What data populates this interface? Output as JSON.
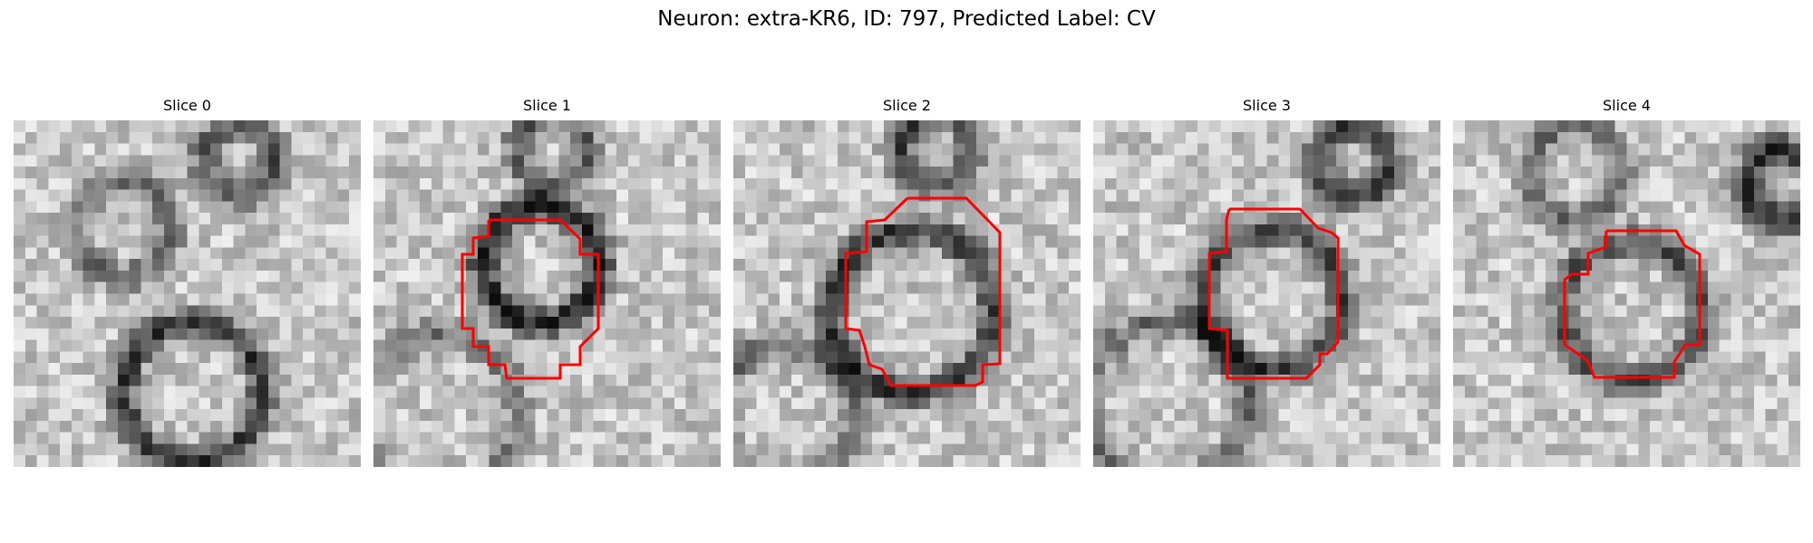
{
  "figure": {
    "title": "Neuron: extra-KR6, ID: 797, Predicted Label: CV"
  },
  "panels": [
    {
      "title": "Slice 0",
      "has_contour": false
    },
    {
      "title": "Slice 1",
      "has_contour": true
    },
    {
      "title": "Slice 2",
      "has_contour": true
    },
    {
      "title": "Slice 3",
      "has_contour": true
    },
    {
      "title": "Slice 4",
      "has_contour": true
    }
  ],
  "colors": {
    "contour": "#ff0000",
    "background": "#ffffff"
  }
}
